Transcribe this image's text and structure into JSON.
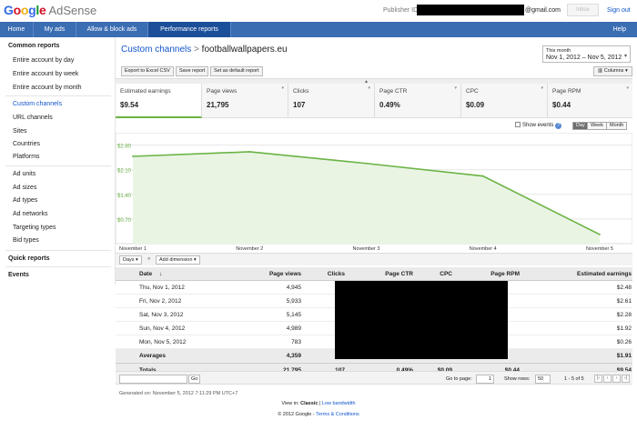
{
  "header": {
    "logo_google": "Google",
    "logo_product": "AdSense",
    "publisher_label": "Publisher ID:",
    "publisher_email_suffix": "@gmail.com",
    "inbox_label": "Inbox",
    "sign_out": "Sign out"
  },
  "nav": {
    "items": [
      "Home",
      "My ads",
      "Allow & block ads",
      "Performance reports"
    ],
    "active": "Performance reports",
    "help": "Help"
  },
  "sidebar": {
    "common_reports": "Common reports",
    "entire_day": "Entire account by day",
    "entire_week": "Entire account by week",
    "entire_month": "Entire account by month",
    "custom_channels": "Custom channels",
    "url_channels": "URL channels",
    "sites": "Sites",
    "countries": "Countries",
    "platforms": "Platforms",
    "ad_units": "Ad units",
    "ad_sizes": "Ad sizes",
    "ad_types": "Ad types",
    "ad_networks": "Ad networks",
    "targeting_types": "Targeting types",
    "bid_types": "Bid types",
    "quick_reports": "Quick reports",
    "events": "Events"
  },
  "report": {
    "breadcrumb_link": "Custom channels",
    "breadcrumb_sep": ">",
    "channel": "footballwallpapers.eu",
    "export_csv": "Export to Excel CSV",
    "save_report": "Save report",
    "set_default": "Set as default report",
    "date_label": "This month",
    "date_value": "Nov 1, 2012 – Nov 5, 2012",
    "columns": "Columns"
  },
  "metrics": [
    {
      "label": "Estimated earnings",
      "value": "$9.54"
    },
    {
      "label": "Page views",
      "value": "21,795"
    },
    {
      "label": "Clicks",
      "value": "107"
    },
    {
      "label": "Page CTR",
      "value": "0.49%"
    },
    {
      "label": "CPC",
      "value": "$0.09"
    },
    {
      "label": "Page RPM",
      "value": "$0.44"
    }
  ],
  "chart_controls": {
    "show_events": "Show events",
    "help": "?",
    "day": "Day",
    "week": "Week",
    "month": "Month"
  },
  "chart_data": {
    "type": "area",
    "x": [
      "November 1",
      "November 2",
      "November 3",
      "November 4",
      "November 5"
    ],
    "values": [
      2.48,
      2.61,
      2.28,
      1.92,
      0.26
    ],
    "yticks": [
      "$2.80",
      "$2.10",
      "$1.40",
      "$0.70"
    ],
    "ytick_values": [
      2.8,
      2.1,
      1.4,
      0.7
    ],
    "ylim": [
      0,
      3.1
    ],
    "grid": true,
    "color": "#6ab344",
    "fill": "#e9f4e3"
  },
  "table_toolbar": {
    "days": "Days",
    "arrow": "»",
    "add_dimension": "Add dimension"
  },
  "table": {
    "headers": [
      "Date",
      "Page views",
      "Clicks",
      "Page CTR",
      "CPC",
      "Page RPM",
      "Estimated earnings"
    ],
    "sort_indicator": "↓",
    "rows": [
      {
        "date": "Thu, Nov 1, 2012",
        "pv": "4,945",
        "earn": "$2.48"
      },
      {
        "date": "Fri, Nov 2, 2012",
        "pv": "5,933",
        "earn": "$2.61"
      },
      {
        "date": "Sat, Nov 3, 2012",
        "pv": "5,145",
        "earn": "$2.28"
      },
      {
        "date": "Sun, Nov 4, 2012",
        "pv": "4,989",
        "earn": "$1.92"
      },
      {
        "date": "Mon, Nov 5, 2012",
        "pv": "783",
        "earn": "$0.26"
      }
    ],
    "averages": {
      "label": "Averages",
      "pv": "4,359",
      "earn": "$1.91"
    },
    "totals": {
      "label": "Totals",
      "pv": "21,795",
      "clicks": "107",
      "ctr": "0.49%",
      "cpc": "$0.09",
      "rpm": "$0.44",
      "earn": "$9.54"
    }
  },
  "pager": {
    "go": "Go",
    "go_to_page": "Go to page:",
    "page": "1",
    "show_rows": "Show rows:",
    "rows": "50",
    "range": "1 - 5 of 5"
  },
  "footer": {
    "generated": "Generated on: November 5, 2012 7:11:29 PM UTC+7",
    "view_in": "View in:",
    "classic": "Classic",
    "divider": "|",
    "low_bandwidth": "Low bandwidth",
    "copyright": "© 2012 Google -",
    "terms": "Terms & Conditions"
  }
}
